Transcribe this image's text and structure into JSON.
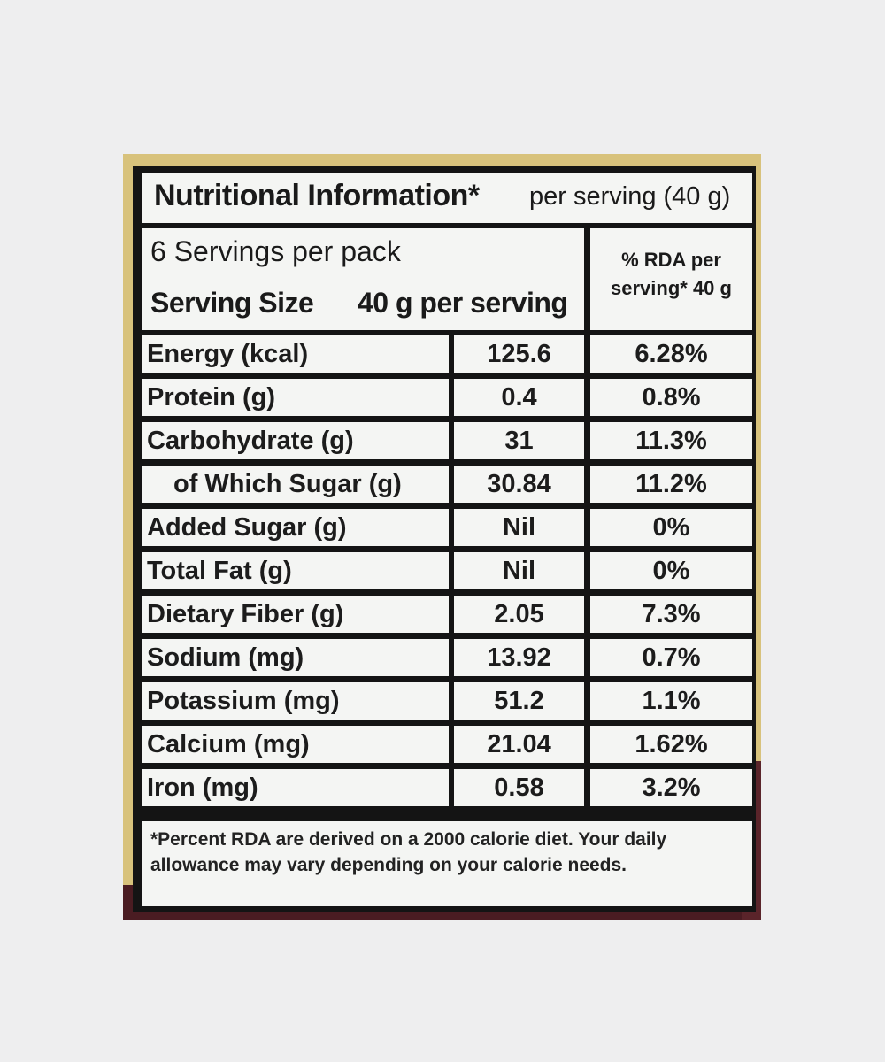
{
  "title": {
    "bold": "Nutritional Information*",
    "light": "per serving (40 g)"
  },
  "servings": {
    "per_pack": "6 Servings per pack",
    "size_label": "Serving Size",
    "size_value": "40 g per serving"
  },
  "rda_header": {
    "line1": "% RDA per",
    "line2": "serving* 40 g"
  },
  "rows": [
    {
      "name": "Energy (kcal)",
      "value": "125.6",
      "rda": "6.28%"
    },
    {
      "name": "Protein (g)",
      "value": "0.4",
      "rda": "0.8%"
    },
    {
      "name": "Carbohydrate (g)",
      "value": "31",
      "rda": "11.3%"
    },
    {
      "name": "of Which Sugar (g)",
      "value": "30.84",
      "rda": "11.2%"
    },
    {
      "name": "Added Sugar (g)",
      "value": "Nil",
      "rda": "0%"
    },
    {
      "name": "Total Fat (g)",
      "value": "Nil",
      "rda": "0%"
    },
    {
      "name": "Dietary Fiber (g)",
      "value": "2.05",
      "rda": "7.3%"
    },
    {
      "name": "Sodium (mg)",
      "value": "13.92",
      "rda": "0.7%"
    },
    {
      "name": "Potassium (mg)",
      "value": "51.2",
      "rda": "1.1%"
    },
    {
      "name": "Calcium (mg)",
      "value": "21.04",
      "rda": "1.62%"
    },
    {
      "name": "Iron (mg)",
      "value": "0.58",
      "rda": "3.2%"
    }
  ],
  "footnote": "*Percent RDA are derived on a 2000 calorie diet. Your daily allowance may vary depending on your calorie needs."
}
